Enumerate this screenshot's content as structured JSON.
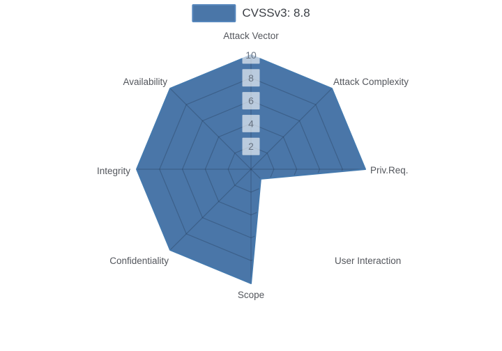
{
  "legend": {
    "items": [
      {
        "label": "CVSSv3: 8.8",
        "swatch_fill": "#4a76a8",
        "swatch_border": "#5687bd"
      }
    ],
    "position": "top-center"
  },
  "chart_data": {
    "type": "radar",
    "title": "",
    "categories": [
      "Attack Vector",
      "Attack Complexity",
      "Priv.Req.",
      "User Interaction",
      "Scope",
      "Confidentiality",
      "Integrity",
      "Availability"
    ],
    "series": [
      {
        "name": "CVSSv3: 8.8",
        "values": [
          10,
          10,
          10,
          1.2,
          10,
          10,
          10,
          10
        ],
        "fill_color": "#4a76a8",
        "line_color": "#4579ad"
      }
    ],
    "radial_ticks": [
      2,
      4,
      6,
      8,
      10
    ],
    "r_range": [
      0,
      10
    ],
    "start_axis": "top",
    "direction": "clockwise",
    "grid": {
      "rings": true,
      "spokes": true,
      "visible_only_inside_fill": true
    },
    "legend_position": "top-center",
    "colors": {
      "fill": "#4a76a8",
      "outline": "#4579ad",
      "grid_line": "rgba(30,50,75,0.32)",
      "tick_box": "rgba(255,255,255,0.62)",
      "tick_text": "#5f6a79",
      "axis_label_text": "#53565c",
      "legend_text": "#3b3f45",
      "background": "#ffffff"
    }
  }
}
